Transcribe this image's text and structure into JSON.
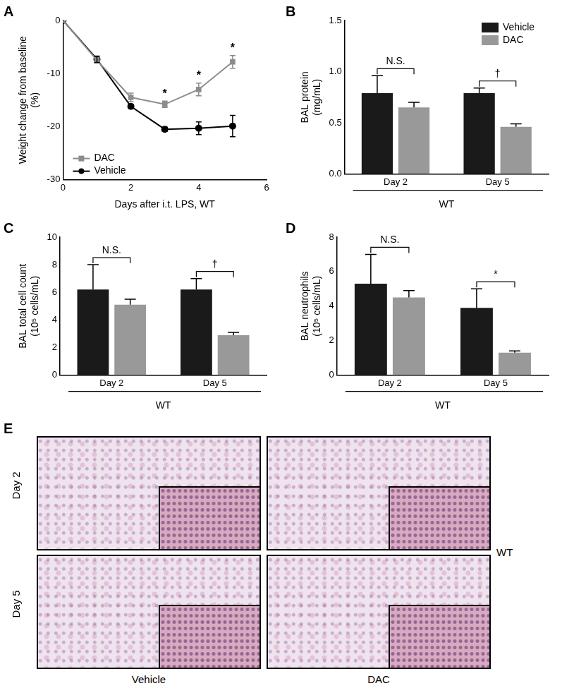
{
  "chart_data": [
    {
      "type": "line",
      "title": "A",
      "x_label": "Days after i.t. LPS, WT",
      "y_label": "Weight change from baseline (%)",
      "x": [
        0,
        1,
        2,
        3,
        4,
        5
      ],
      "series": [
        {
          "name": "DAC",
          "color": "#8c8c8c",
          "marker": "square",
          "values": [
            0,
            -7.5,
            -14.5,
            -15.8,
            -13,
            -7.8
          ],
          "errors": [
            0,
            0.5,
            0.8,
            0.6,
            1.2,
            1.2
          ]
        },
        {
          "name": "Vehicle",
          "color": "#000000",
          "marker": "circle",
          "values": [
            0,
            -7.3,
            -16.2,
            -20.5,
            -20.3,
            -19.9
          ],
          "errors": [
            0,
            0.6,
            0.4,
            0.4,
            1.2,
            2.0
          ]
        }
      ],
      "xlim": [
        0,
        6
      ],
      "xticks": [
        0,
        2,
        4,
        6
      ],
      "ylim": [
        -30,
        0
      ],
      "yticks": [
        -30,
        -20,
        -10,
        0
      ],
      "grid": false,
      "legend": "bottom-left",
      "annotations": [
        {
          "x": 3,
          "text": "*"
        },
        {
          "x": 4,
          "text": "*"
        },
        {
          "x": 5,
          "text": "*"
        }
      ]
    },
    {
      "type": "bar",
      "title": "B",
      "x_label": "WT",
      "y_label": "BAL protein (mg/mL)",
      "categories": [
        "Day 2",
        "Day 5"
      ],
      "series": [
        {
          "name": "Vehicle",
          "color": "#1a1a1a",
          "values": [
            0.79,
            0.79
          ],
          "errors": [
            0.17,
            0.05
          ]
        },
        {
          "name": "DAC",
          "color": "#999999",
          "values": [
            0.65,
            0.46
          ],
          "errors": [
            0.05,
            0.03
          ]
        }
      ],
      "ylim": [
        0,
        1.5
      ],
      "yticks": [
        {
          "value": 0,
          "label": "0.0"
        },
        0.5,
        {
          "value": 1,
          "label": "1.0"
        },
        1.5
      ],
      "grid": false,
      "legend": "top-right",
      "annotations": [
        {
          "category": "Day 2",
          "text": "N.S."
        },
        {
          "category": "Day 5",
          "text": "†"
        }
      ]
    },
    {
      "type": "bar",
      "title": "C",
      "x_label": "WT",
      "y_label": "BAL total cell count (10⁵ cells/mL)",
      "categories": [
        "Day 2",
        "Day 5"
      ],
      "series": [
        {
          "name": "Vehicle",
          "color": "#1a1a1a",
          "values": [
            6.2,
            6.2
          ],
          "errors": [
            1.8,
            0.8
          ]
        },
        {
          "name": "DAC",
          "color": "#999999",
          "values": [
            5.1,
            2.9
          ],
          "errors": [
            0.4,
            0.2
          ]
        }
      ],
      "ylim": [
        0,
        10
      ],
      "yticks": [
        0,
        2,
        4,
        6,
        8,
        10
      ],
      "grid": false,
      "annotations": [
        {
          "category": "Day 2",
          "text": "N.S."
        },
        {
          "category": "Day 5",
          "text": "†"
        }
      ]
    },
    {
      "type": "bar",
      "title": "D",
      "x_label": "WT",
      "y_label": "BAL neutrophils (10⁵ cells/mL)",
      "categories": [
        "Day 2",
        "Day 5"
      ],
      "series": [
        {
          "name": "Vehicle",
          "color": "#1a1a1a",
          "values": [
            5.3,
            3.9
          ],
          "errors": [
            1.7,
            1.1
          ]
        },
        {
          "name": "DAC",
          "color": "#999999",
          "values": [
            4.5,
            1.3
          ],
          "errors": [
            0.4,
            0.1
          ]
        }
      ],
      "ylim": [
        0,
        8
      ],
      "yticks": [
        0,
        2,
        4,
        6,
        8
      ],
      "grid": false,
      "annotations": [
        {
          "category": "Day 2",
          "text": "N.S."
        },
        {
          "category": "Day 5",
          "text": "*"
        }
      ]
    }
  ],
  "figure": {
    "title": "E",
    "rows": [
      "Day 2",
      "Day 5"
    ],
    "columns": [
      "Vehicle",
      "DAC"
    ],
    "group": "WT"
  }
}
